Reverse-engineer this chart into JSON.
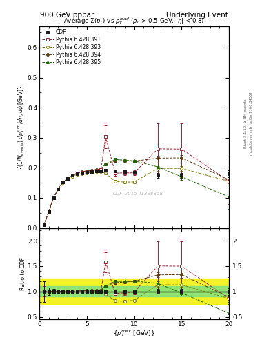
{
  "title_left": "900 GeV ppbar",
  "title_right": "Underlying Event",
  "plot_title": "Average $\\Sigma(p_T)$ vs $p_T^{lead}$ ($p_T$ > 0.5 GeV, $|\\eta|$ < 0.8)",
  "watermark": "CDF_2015_I1388868",
  "right_label": "Rivet 3.1.10, ≥ 3M events",
  "right_label2": "mcplots.cern.ch [arXiv:1306.3436]",
  "xlabel": "$\\{p_T^{max}$ [GeV]$\\}$",
  "ylabel": "$\\{(1/N_{events})$ $dp_T^{sum}/d\\eta, d\\phi$ [GeV]$\\}$",
  "ylabel_ratio": "Ratio to CDF",
  "ylim_main": [
    0.0,
    0.67
  ],
  "ylim_ratio": [
    0.45,
    2.25
  ],
  "xlim": [
    0,
    20
  ],
  "cdf_x": [
    0.5,
    1.0,
    1.5,
    2.0,
    2.5,
    3.0,
    3.5,
    4.0,
    4.5,
    5.0,
    5.5,
    6.0,
    6.5,
    7.0,
    8.0,
    9.0,
    10.0,
    12.5,
    15.0,
    20.0
  ],
  "cdf_y": [
    0.01,
    0.055,
    0.1,
    0.13,
    0.152,
    0.165,
    0.175,
    0.18,
    0.183,
    0.185,
    0.187,
    0.19,
    0.19,
    0.192,
    0.19,
    0.188,
    0.185,
    0.175,
    0.175,
    0.18
  ],
  "cdf_yerr": [
    0.002,
    0.004,
    0.005,
    0.005,
    0.005,
    0.005,
    0.005,
    0.004,
    0.004,
    0.004,
    0.004,
    0.004,
    0.004,
    0.004,
    0.004,
    0.004,
    0.004,
    0.008,
    0.008,
    0.012
  ],
  "p391_x": [
    0.5,
    1.0,
    1.5,
    2.0,
    2.5,
    3.0,
    3.5,
    4.0,
    4.5,
    5.0,
    5.5,
    6.0,
    6.5,
    7.0,
    8.0,
    9.0,
    10.0,
    12.5,
    15.0,
    20.0
  ],
  "p391_y": [
    0.01,
    0.055,
    0.1,
    0.13,
    0.152,
    0.165,
    0.175,
    0.182,
    0.185,
    0.188,
    0.19,
    0.192,
    0.193,
    0.303,
    0.182,
    0.183,
    0.183,
    0.263,
    0.262,
    0.155
  ],
  "p391_yerr": [
    0.001,
    0.002,
    0.003,
    0.003,
    0.003,
    0.003,
    0.003,
    0.003,
    0.003,
    0.003,
    0.003,
    0.003,
    0.003,
    0.038,
    0.008,
    0.008,
    0.008,
    0.085,
    0.085,
    0.075
  ],
  "p393_x": [
    0.5,
    1.0,
    1.5,
    2.0,
    2.5,
    3.0,
    3.5,
    4.0,
    4.5,
    5.0,
    5.5,
    6.0,
    6.5,
    7.0,
    8.0,
    9.0,
    10.0,
    12.5,
    15.0,
    20.0
  ],
  "p393_y": [
    0.01,
    0.055,
    0.1,
    0.13,
    0.15,
    0.163,
    0.172,
    0.178,
    0.181,
    0.183,
    0.185,
    0.187,
    0.187,
    0.182,
    0.155,
    0.152,
    0.153,
    0.198,
    0.198,
    0.155
  ],
  "p393_yerr": [
    0.001,
    0.002,
    0.003,
    0.003,
    0.003,
    0.003,
    0.003,
    0.003,
    0.003,
    0.003,
    0.003,
    0.003,
    0.003,
    0.004,
    0.004,
    0.004,
    0.004,
    0.008,
    0.008,
    0.008
  ],
  "p394_x": [
    0.5,
    1.0,
    1.5,
    2.0,
    2.5,
    3.0,
    3.5,
    4.0,
    4.5,
    5.0,
    5.5,
    6.0,
    6.5,
    7.0,
    8.0,
    9.0,
    10.0,
    12.5,
    15.0,
    20.0
  ],
  "p394_y": [
    0.01,
    0.055,
    0.1,
    0.13,
    0.152,
    0.165,
    0.175,
    0.182,
    0.186,
    0.19,
    0.192,
    0.194,
    0.195,
    0.213,
    0.223,
    0.223,
    0.222,
    0.232,
    0.233,
    0.16
  ],
  "p394_yerr": [
    0.001,
    0.002,
    0.003,
    0.003,
    0.003,
    0.003,
    0.003,
    0.003,
    0.003,
    0.003,
    0.003,
    0.003,
    0.003,
    0.004,
    0.004,
    0.004,
    0.004,
    0.008,
    0.01,
    0.025
  ],
  "p395_x": [
    0.5,
    1.0,
    1.5,
    2.0,
    2.5,
    3.0,
    3.5,
    4.0,
    4.5,
    5.0,
    5.5,
    6.0,
    6.5,
    7.0,
    8.0,
    9.0,
    10.0,
    12.5,
    15.0,
    20.0
  ],
  "p395_y": [
    0.01,
    0.055,
    0.1,
    0.13,
    0.152,
    0.165,
    0.175,
    0.182,
    0.186,
    0.19,
    0.192,
    0.194,
    0.195,
    0.213,
    0.228,
    0.225,
    0.223,
    0.203,
    0.17,
    0.103
  ],
  "p395_yerr": [
    0.001,
    0.002,
    0.003,
    0.003,
    0.003,
    0.003,
    0.003,
    0.003,
    0.003,
    0.003,
    0.003,
    0.003,
    0.003,
    0.004,
    0.004,
    0.004,
    0.004,
    0.008,
    0.01,
    0.04
  ],
  "color_cdf": "#1a1a1a",
  "color_391": "#9b2335",
  "color_393": "#7a7a00",
  "color_394": "#5a3a10",
  "color_395": "#1a6600",
  "band_green_lo": 0.9,
  "band_green_hi": 1.1,
  "band_yellow_lo": 0.75,
  "band_yellow_hi": 1.25,
  "band_green_color": "#80e080",
  "band_yellow_color": "#f0f000"
}
